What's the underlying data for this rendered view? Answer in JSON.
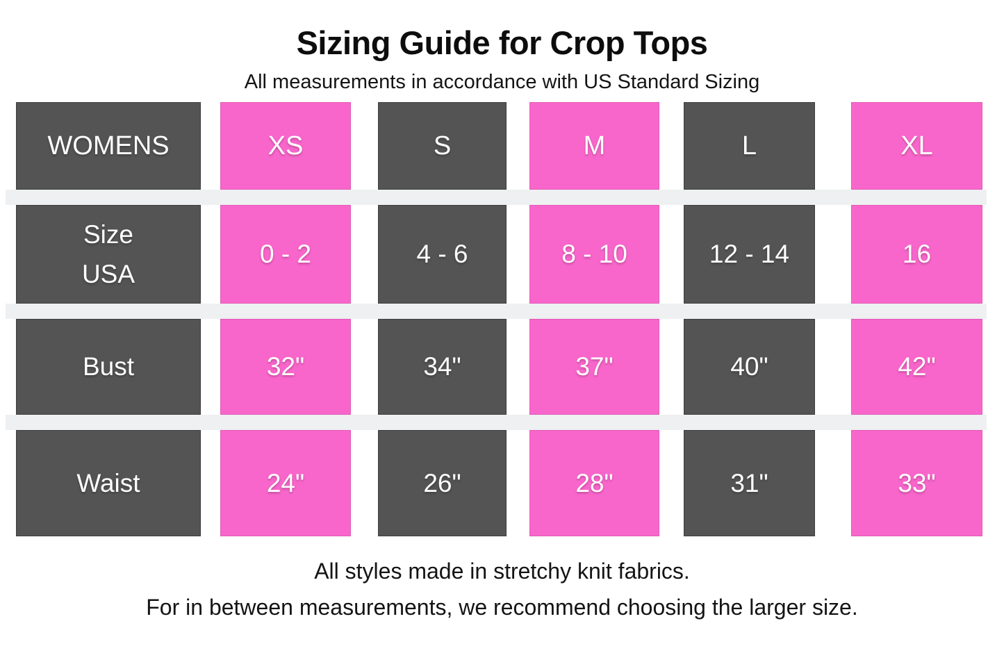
{
  "title": "Sizing Guide for Crop Tops",
  "subtitle": "All measurements in accordance with US Standard Sizing",
  "colors": {
    "cell_dark_gray": "#545454",
    "cell_pink": "#f966cb",
    "separator_band_gray": "#eef0f1",
    "cell_text": "#ffffff",
    "heading_text": "#0d0d0d",
    "body_text": "#141414",
    "background": "#ffffff"
  },
  "table": {
    "rows": [
      {
        "cells": [
          "WOMENS",
          "XS",
          "S",
          "M",
          "L",
          "XL"
        ]
      },
      {
        "cells": [
          "Size\nUSA",
          "0 - 2",
          "4 - 6",
          "8 - 10",
          "12 - 14",
          "16"
        ]
      },
      {
        "cells": [
          "Bust",
          "32\"",
          "34\"",
          "37\"",
          "40\"",
          "42\""
        ]
      },
      {
        "cells": [
          "Waist",
          "24\"",
          "26\"",
          "28\"",
          "31\"",
          "33\""
        ]
      }
    ]
  },
  "footer": {
    "line1": "All styles made in stretchy knit fabrics.",
    "line2": "For in between measurements, we recommend choosing the larger size."
  },
  "chart_data": {
    "type": "table",
    "title": "Sizing Guide for Crop Tops",
    "subtitle": "All measurements in accordance with US Standard Sizing",
    "columns": [
      "WOMENS",
      "XS",
      "S",
      "M",
      "L",
      "XL"
    ],
    "rows": [
      {
        "label": "Size USA",
        "values": [
          "0 - 2",
          "4 - 6",
          "8 - 10",
          "12 - 14",
          "16"
        ]
      },
      {
        "label": "Bust",
        "values": [
          "32\"",
          "34\"",
          "37\"",
          "40\"",
          "42\""
        ]
      },
      {
        "label": "Waist",
        "values": [
          "24\"",
          "26\"",
          "28\"",
          "31\"",
          "33\""
        ]
      }
    ],
    "notes": [
      "All styles made in stretchy knit fabrics.",
      "For in between measurements, we recommend choosing the larger size."
    ],
    "layout_hints": {
      "column_color_pattern": [
        "dark_gray",
        "pink",
        "dark_gray",
        "pink",
        "dark_gray",
        "pink"
      ],
      "row_separator_bands": true
    }
  }
}
